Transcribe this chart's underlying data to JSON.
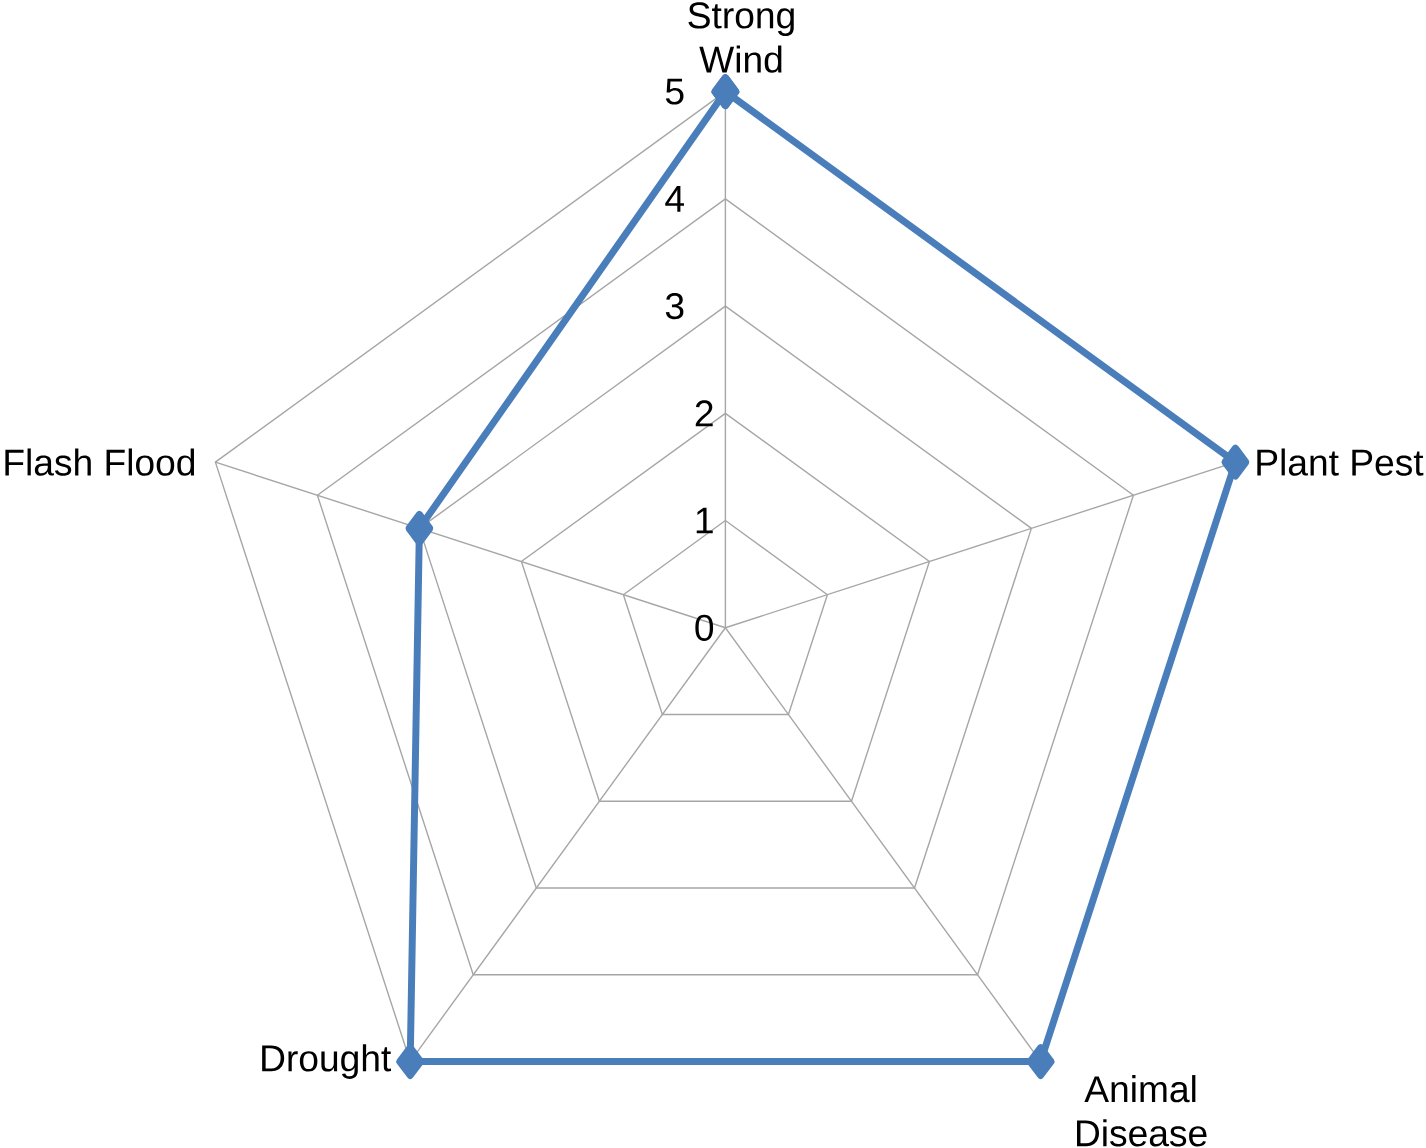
{
  "chart_data": {
    "type": "radar",
    "categories": [
      "Strong Wind",
      "Plant Pest",
      "Animal Disease",
      "Drought",
      "Flash Flood"
    ],
    "series": [
      {
        "color": "#4a7ebb",
        "values": [
          5,
          5,
          5,
          5,
          3
        ]
      }
    ],
    "ylim": [
      0,
      5
    ],
    "yticks": [
      0,
      1,
      2,
      3,
      4,
      5
    ],
    "grid": true,
    "marker": "diamond",
    "line_style": "solid"
  }
}
